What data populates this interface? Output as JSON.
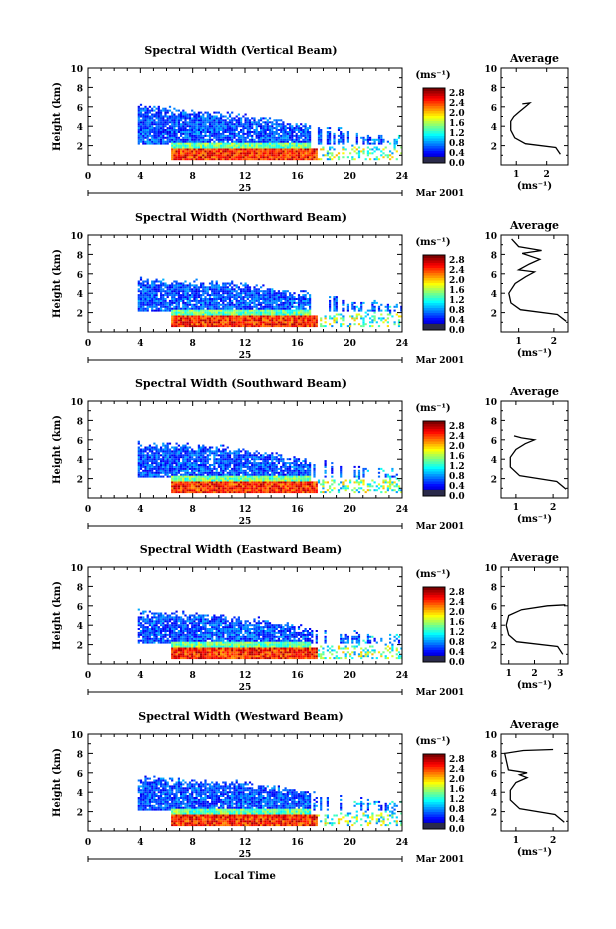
{
  "figure": {
    "x_axis_label": "Local Time",
    "date_label": "Mar 2001",
    "day_label": "25",
    "average_title": "Average",
    "cb_unit": "(ms⁻¹)",
    "avg_unit": "(ms⁻¹)",
    "y_axis_label": "Height (km)"
  },
  "chart_data": [
    {
      "type": "heatmap",
      "title": "Spectral Width (Vertical Beam)",
      "xlabel": "Local Time",
      "ylabel": "Height (km)",
      "xlim": [
        0,
        24
      ],
      "ylim": [
        0,
        10
      ],
      "x_ticks": [
        0,
        4,
        8,
        12,
        16,
        20,
        24
      ],
      "y_ticks": [
        2,
        4,
        6,
        8,
        10
      ],
      "colorbar": {
        "label": "(ms⁻¹)",
        "ticks": [
          0.0,
          0.4,
          0.8,
          1.2,
          1.6,
          2.0,
          2.4,
          2.8
        ],
        "range": [
          0,
          3.0
        ]
      },
      "cloud_top_km": [
        6.0,
        5.4,
        5.0,
        4.5,
        3.8,
        3.2,
        2.3
      ],
      "profile": {
        "title": "Average",
        "xlabel": "(ms⁻¹)",
        "x_ticks": [
          1,
          2
        ],
        "xlim": [
          0.5,
          2.7
        ],
        "ylim": [
          0,
          10
        ],
        "points": [
          [
            2.45,
            1.1
          ],
          [
            2.3,
            1.8
          ],
          [
            1.3,
            2.2
          ],
          [
            0.95,
            2.8
          ],
          [
            0.82,
            3.6
          ],
          [
            0.82,
            4.5
          ],
          [
            0.92,
            5.0
          ],
          [
            1.1,
            5.5
          ],
          [
            1.3,
            6.0
          ],
          [
            1.45,
            6.4
          ],
          [
            1.2,
            6.3
          ]
        ]
      }
    },
    {
      "type": "heatmap",
      "title": "Spectral Width (Northward Beam)",
      "xlabel": "Local Time",
      "ylabel": "Height (km)",
      "xlim": [
        0,
        24
      ],
      "ylim": [
        0,
        10
      ],
      "x_ticks": [
        0,
        4,
        8,
        12,
        16,
        20,
        24
      ],
      "y_ticks": [
        2,
        4,
        6,
        8,
        10
      ],
      "colorbar": {
        "label": "(ms⁻¹)",
        "ticks": [
          0.0,
          0.4,
          0.8,
          1.2,
          1.6,
          2.0,
          2.4,
          2.8
        ],
        "range": [
          0,
          3.0
        ]
      },
      "cloud_top_km": [
        5.2,
        5.0,
        4.8,
        4.3,
        3.6,
        3.0,
        2.4
      ],
      "profile": {
        "title": "Average",
        "xlabel": "(ms⁻¹)",
        "x_ticks": [
          1,
          2
        ],
        "xlim": [
          0.5,
          2.4
        ],
        "ylim": [
          0,
          10
        ],
        "points": [
          [
            2.35,
            1.1
          ],
          [
            2.1,
            1.8
          ],
          [
            1.05,
            2.3
          ],
          [
            0.78,
            3.0
          ],
          [
            0.72,
            4.0
          ],
          [
            0.9,
            5.0
          ],
          [
            1.2,
            5.7
          ],
          [
            1.45,
            6.2
          ],
          [
            1.0,
            6.4
          ],
          [
            1.3,
            7.0
          ],
          [
            1.6,
            7.5
          ],
          [
            1.1,
            8.1
          ],
          [
            1.65,
            8.4
          ],
          [
            1.0,
            8.8
          ],
          [
            0.8,
            9.6
          ]
        ]
      }
    },
    {
      "type": "heatmap",
      "title": "Spectral Width (Southward Beam)",
      "xlabel": "Local Time",
      "ylabel": "Height (km)",
      "xlim": [
        0,
        24
      ],
      "ylim": [
        0,
        10
      ],
      "x_ticks": [
        0,
        4,
        8,
        12,
        16,
        20,
        24
      ],
      "y_ticks": [
        2,
        4,
        6,
        8,
        10
      ],
      "colorbar": {
        "label": "(ms⁻¹)",
        "ticks": [
          0.0,
          0.4,
          0.8,
          1.2,
          1.6,
          2.0,
          2.4,
          2.8
        ],
        "range": [
          0,
          3.0
        ]
      },
      "cloud_top_km": [
        5.4,
        5.2,
        5.0,
        4.4,
        3.6,
        3.0,
        2.2
      ],
      "profile": {
        "title": "Average",
        "xlabel": "(ms⁻¹)",
        "x_ticks": [
          1,
          2
        ],
        "xlim": [
          0.6,
          2.4
        ],
        "ylim": [
          0,
          10
        ],
        "points": [
          [
            2.35,
            0.9
          ],
          [
            2.1,
            1.7
          ],
          [
            1.1,
            2.3
          ],
          [
            0.85,
            3.2
          ],
          [
            0.85,
            4.2
          ],
          [
            1.0,
            5.0
          ],
          [
            1.25,
            5.6
          ],
          [
            1.5,
            6.0
          ],
          [
            1.15,
            6.2
          ],
          [
            0.95,
            6.4
          ]
        ]
      }
    },
    {
      "type": "heatmap",
      "title": "Spectral Width (Eastward Beam)",
      "xlabel": "Local Time",
      "ylabel": "Height (km)",
      "xlim": [
        0,
        24
      ],
      "ylim": [
        0,
        10
      ],
      "x_ticks": [
        0,
        4,
        8,
        12,
        16,
        20,
        24
      ],
      "y_ticks": [
        2,
        4,
        6,
        8,
        10
      ],
      "colorbar": {
        "label": "(ms⁻¹)",
        "ticks": [
          0.0,
          0.4,
          0.8,
          1.2,
          1.6,
          2.0,
          2.4,
          2.8
        ],
        "range": [
          0,
          3.0
        ]
      },
      "cloud_top_km": [
        5.2,
        5.0,
        4.6,
        4.2,
        3.4,
        2.9,
        2.3
      ],
      "profile": {
        "title": "Average",
        "xlabel": "(ms⁻¹)",
        "x_ticks": [
          1,
          2,
          3
        ],
        "xlim": [
          0.7,
          3.3
        ],
        "ylim": [
          0,
          10
        ],
        "points": [
          [
            3.1,
            1.0
          ],
          [
            2.9,
            1.8
          ],
          [
            1.3,
            2.3
          ],
          [
            1.0,
            3.0
          ],
          [
            0.9,
            4.0
          ],
          [
            1.0,
            5.0
          ],
          [
            1.5,
            5.6
          ],
          [
            2.5,
            6.0
          ],
          [
            3.2,
            6.1
          ]
        ]
      }
    },
    {
      "type": "heatmap",
      "title": "Spectral Width (Westward Beam)",
      "xlabel": "Local Time",
      "ylabel": "Height (km)",
      "xlim": [
        0,
        24
      ],
      "ylim": [
        0,
        10
      ],
      "x_ticks": [
        0,
        4,
        8,
        12,
        16,
        20,
        24
      ],
      "y_ticks": [
        2,
        4,
        6,
        8,
        10
      ],
      "colorbar": {
        "label": "(ms⁻¹)",
        "ticks": [
          0.0,
          0.4,
          0.8,
          1.2,
          1.6,
          2.0,
          2.4,
          2.8
        ],
        "range": [
          0,
          3.0
        ]
      },
      "cloud_top_km": [
        5.4,
        5.0,
        4.8,
        4.4,
        3.6,
        3.0,
        2.3
      ],
      "profile": {
        "title": "Average",
        "xlabel": "(ms⁻¹)",
        "x_ticks": [
          1,
          2
        ],
        "xlim": [
          0.6,
          2.4
        ],
        "ylim": [
          0,
          10
        ],
        "points": [
          [
            2.3,
            0.9
          ],
          [
            2.05,
            1.7
          ],
          [
            1.1,
            2.3
          ],
          [
            0.85,
            3.2
          ],
          [
            0.85,
            4.2
          ],
          [
            1.0,
            5.0
          ],
          [
            1.3,
            5.5
          ],
          [
            1.1,
            5.8
          ],
          [
            1.3,
            6.0
          ],
          [
            0.8,
            6.3
          ],
          [
            0.7,
            8.0
          ],
          [
            1.2,
            8.3
          ],
          [
            2.0,
            8.4
          ]
        ]
      }
    }
  ]
}
